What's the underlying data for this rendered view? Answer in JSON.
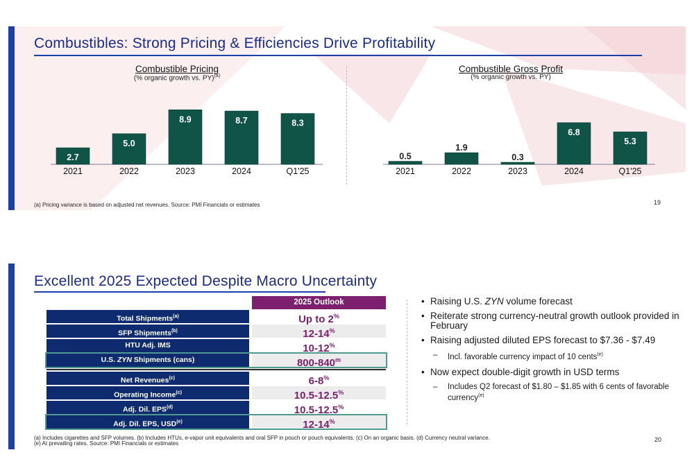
{
  "colors": {
    "brand_blue": "#1d3fa8",
    "title_blue": "#1b2b8c",
    "bar_green": "#0f5447",
    "table_navy": "#0d2b6e",
    "outlook_purple": "#7b1f6e",
    "box_teal": "#4f9a8e"
  },
  "slide1": {
    "title": "Combustibles: Strong Pricing & Efficiencies Drive Profitability",
    "footnote": "(a) Pricing variance is based on adjusted net revenues. Source: PMI Financials or estimates",
    "page_number": "19",
    "chart_data": [
      {
        "type": "bar",
        "title": "Combustible Pricing",
        "subtitle": "(% organic growth vs. PY)",
        "subtitle_sup": "(a)",
        "categories": [
          "2021",
          "2022",
          "2023",
          "2024",
          "Q1'25"
        ],
        "values": [
          2.7,
          5.0,
          8.9,
          8.7,
          8.3
        ],
        "labels": [
          "2.7",
          "5.0",
          "8.9",
          "8.7",
          "8.3"
        ],
        "ylim": [
          0,
          9.5
        ]
      },
      {
        "type": "bar",
        "title": "Combustible Gross Profit",
        "subtitle": "(% organic growth vs. PY)",
        "subtitle_sup": "",
        "categories": [
          "2021",
          "2022",
          "2023",
          "2024",
          "Q1'25"
        ],
        "values": [
          0.5,
          1.9,
          0.3,
          6.8,
          5.3
        ],
        "labels": [
          "0.5",
          "1.9",
          "0.3",
          "6.8",
          "5.3"
        ],
        "ylim": [
          0,
          9.5
        ]
      }
    ]
  },
  "slide2": {
    "title": "Excellent 2025 Expected Despite Macro Uncertainty",
    "outlook_header": "2025 Outlook",
    "rows": [
      {
        "label": "Total Shipments",
        "sup": "(a)",
        "value": "Up to 2",
        "value_sup": "%"
      },
      {
        "label": "SFP Shipments",
        "sup": "(b)",
        "value": "12-14",
        "value_sup": "%"
      },
      {
        "label": "HTU Adj. IMS",
        "sup": "",
        "value": "10-12",
        "value_sup": "%"
      },
      {
        "label": "U.S. ZYN Shipments (cans)",
        "sup": "",
        "value": "800-840",
        "value_sup": "m"
      },
      {
        "label": "Net Revenues",
        "sup": "(c)",
        "value": "6-8",
        "value_sup": "%"
      },
      {
        "label": "Operating Income",
        "sup": "(c)",
        "value": "10.5-12.5",
        "value_sup": "%"
      },
      {
        "label": "Adj. Dil. EPS",
        "sup": "(d)",
        "value": "10.5-12.5",
        "value_sup": "%"
      },
      {
        "label": "Adj. Dil. EPS, USD",
        "sup": "(e)",
        "value": "12-14",
        "value_sup": "%"
      }
    ],
    "bullets": {
      "b1": "Raising U.S. ZYN volume forecast",
      "b2": "Reiterate strong currency-neutral growth outlook provided in February",
      "b3": "Raising adjusted diluted EPS forecast to $7.36 - $7.49",
      "b3_sub": "Incl. favorable currency impact of 10 cents",
      "b3_sub_sup": "(e)",
      "b4": "Now expect double-digit growth in USD terms",
      "b4_sub": "Includes Q2 forecast of $1.80 – $1.85 with 6 cents of favorable currency",
      "b4_sub_sup": "(e)"
    },
    "footnote_line1": "(a) Includes cigarettes and SFP volumes. (b) Includes HTUs, e-vapor unit equivalents and oral SFP in pouch or pouch equivalents. (c) On an organic basis. (d) Currency neutral variance.",
    "footnote_line2": "(e) At prevailing rates. Source: PMI Financials or estimates",
    "page_number": "20"
  }
}
